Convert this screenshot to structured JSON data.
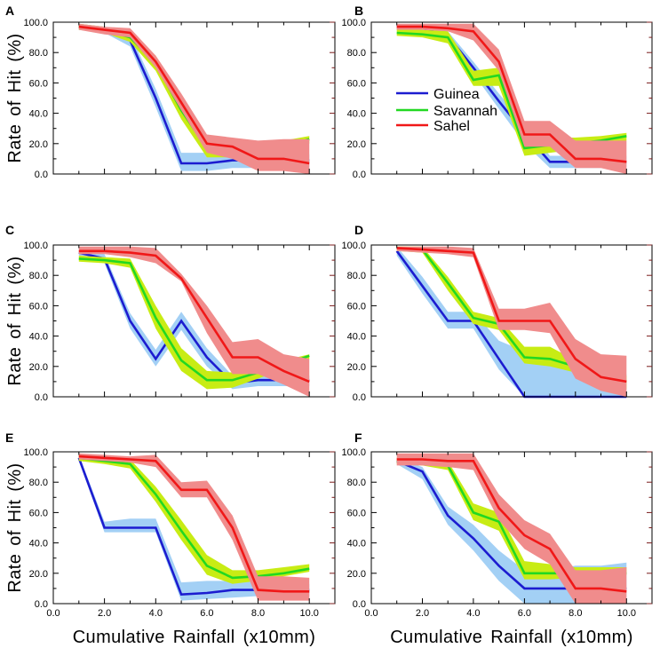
{
  "figure": {
    "background": "#ffffff",
    "frame_color": "#000000",
    "right_tick_color": "#7a1c1c"
  },
  "chart_data": [
    {
      "panel": "A",
      "type": "line",
      "xlim": [
        0,
        11
      ],
      "ylim": [
        0,
        100
      ],
      "xticks": [
        0,
        2,
        4,
        6,
        8,
        10
      ],
      "xtick_labels": [],
      "yticks": [
        0,
        20,
        40,
        60,
        80,
        100
      ],
      "ytick_labels": [
        "0.0",
        "20.0",
        "40.0",
        "60.0",
        "80.0",
        "100.0"
      ],
      "xlabel": "",
      "ylabel": "Rate of Hit (%)",
      "x": [
        1,
        2,
        3,
        4,
        5,
        6,
        7,
        8,
        9,
        10
      ],
      "series": [
        {
          "name": "Guinea",
          "line_color": "#1c1cd0",
          "band_color": "#a3d0f5",
          "values": [
            97,
            95,
            88,
            50,
            7,
            7,
            9,
            9,
            9,
            9
          ],
          "lower": [
            95,
            93,
            84,
            44,
            2,
            2,
            4,
            4,
            4,
            4
          ],
          "upper": [
            99,
            97,
            92,
            56,
            14,
            14,
            14,
            13,
            13,
            13
          ]
        },
        {
          "name": "Savannah",
          "line_color": "#22d822",
          "band_color": "#c8ec14",
          "values": [
            97,
            95,
            90,
            73,
            42,
            17,
            15,
            16,
            18,
            23
          ],
          "lower": [
            95,
            93,
            87,
            68,
            36,
            11,
            11,
            12,
            15,
            20
          ],
          "upper": [
            99,
            97,
            93,
            78,
            48,
            22,
            19,
            20,
            22,
            25
          ]
        },
        {
          "name": "Sahel",
          "line_color": "#f01818",
          "band_color": "#f08c8c",
          "values": [
            97,
            95,
            93,
            74,
            47,
            20,
            18,
            10,
            10,
            7
          ],
          "lower": [
            95,
            92,
            90,
            70,
            42,
            14,
            10,
            2,
            2,
            0
          ],
          "upper": [
            99,
            97,
            96,
            78,
            53,
            26,
            24,
            22,
            23,
            23
          ]
        }
      ]
    },
    {
      "panel": "B",
      "type": "line",
      "xlim": [
        0,
        11
      ],
      "ylim": [
        0,
        100
      ],
      "xticks": [
        0,
        2,
        4,
        6,
        8,
        10
      ],
      "xtick_labels": [],
      "yticks": [
        0,
        20,
        40,
        60,
        80,
        100
      ],
      "ytick_labels": [
        "0.0",
        "20.0",
        "40.0",
        "60.0",
        "80.0",
        "100.0"
      ],
      "xlabel": "",
      "ylabel": "",
      "legend": [
        "Guinea",
        "Savannah",
        "Sahel"
      ],
      "x": [
        1,
        2,
        3,
        4,
        5,
        6,
        7,
        8,
        9,
        10
      ],
      "series": [
        {
          "name": "Guinea",
          "line_color": "#1c1cd0",
          "band_color": "#a3d0f5",
          "values": [
            97,
            96,
            91,
            70,
            48,
            27,
            8,
            8,
            8,
            8
          ],
          "lower": [
            95,
            94,
            88,
            66,
            43,
            20,
            4,
            4,
            4,
            4
          ],
          "upper": [
            99,
            98,
            94,
            74,
            53,
            33,
            12,
            12,
            12,
            12
          ]
        },
        {
          "name": "Savannah",
          "line_color": "#22d822",
          "band_color": "#c8ec14",
          "values": [
            93,
            92,
            90,
            62,
            65,
            17,
            19,
            20,
            22,
            25
          ],
          "lower": [
            91,
            90,
            86,
            58,
            58,
            12,
            14,
            16,
            19,
            22
          ],
          "upper": [
            96,
            95,
            94,
            68,
            70,
            24,
            24,
            24,
            25,
            27
          ]
        },
        {
          "name": "Sahel",
          "line_color": "#f01818",
          "band_color": "#f08c8c",
          "values": [
            97,
            97,
            96,
            94,
            74,
            26,
            26,
            10,
            10,
            8
          ],
          "lower": [
            95,
            95,
            94,
            88,
            68,
            18,
            18,
            4,
            4,
            0
          ],
          "upper": [
            99,
            99,
            99,
            99,
            82,
            35,
            35,
            22,
            22,
            22
          ]
        }
      ]
    },
    {
      "panel": "C",
      "type": "line",
      "xlim": [
        0,
        11
      ],
      "ylim": [
        0,
        100
      ],
      "xticks": [
        0,
        2,
        4,
        6,
        8,
        10
      ],
      "xtick_labels": [],
      "yticks": [
        0,
        20,
        40,
        60,
        80,
        100
      ],
      "ytick_labels": [
        "0.0",
        "20.0",
        "40.0",
        "60.0",
        "80.0",
        "100.0"
      ],
      "xlabel": "",
      "ylabel": "Rate of Hit (%)",
      "x": [
        1,
        2,
        3,
        4,
        5,
        6,
        7,
        8,
        9,
        10
      ],
      "series": [
        {
          "name": "Guinea",
          "line_color": "#1c1cd0",
          "band_color": "#a3d0f5",
          "values": [
            95,
            91,
            50,
            25,
            50,
            26,
            9,
            11,
            11,
            11
          ],
          "lower": [
            93,
            88,
            45,
            20,
            44,
            20,
            5,
            7,
            7,
            7
          ],
          "upper": [
            97,
            94,
            55,
            31,
            56,
            32,
            14,
            14,
            14,
            14
          ]
        },
        {
          "name": "Savannah",
          "line_color": "#22d822",
          "band_color": "#c8ec14",
          "values": [
            91,
            90,
            88,
            52,
            24,
            11,
            11,
            16,
            21,
            27
          ],
          "lower": [
            89,
            88,
            85,
            45,
            17,
            5,
            6,
            12,
            18,
            25
          ],
          "upper": [
            93,
            92,
            91,
            60,
            32,
            17,
            16,
            20,
            24,
            28
          ]
        },
        {
          "name": "Sahel",
          "line_color": "#f01818",
          "band_color": "#f08c8c",
          "values": [
            96,
            96,
            95,
            93,
            78,
            52,
            26,
            26,
            17,
            10
          ],
          "lower": [
            94,
            94,
            92,
            88,
            76,
            42,
            15,
            15,
            8,
            0
          ],
          "upper": [
            99,
            99,
            99,
            98,
            81,
            60,
            36,
            38,
            28,
            25
          ]
        }
      ]
    },
    {
      "panel": "D",
      "type": "line",
      "xlim": [
        0,
        11
      ],
      "ylim": [
        0,
        100
      ],
      "xticks": [
        0,
        2,
        4,
        6,
        8,
        10
      ],
      "xtick_labels": [],
      "yticks": [
        0,
        20,
        40,
        60,
        80,
        100
      ],
      "ytick_labels": [
        "0.0",
        "20.0",
        "40.0",
        "60.0",
        "80.0",
        "100.0"
      ],
      "xlabel": "",
      "ylabel": "",
      "x": [
        1,
        2,
        3,
        4,
        5,
        6,
        7,
        8,
        9,
        10
      ],
      "series": [
        {
          "name": "Guinea",
          "line_color": "#1c1cd0",
          "band_color": "#a3d0f5",
          "values": [
            96,
            73,
            50,
            50,
            25,
            0,
            0,
            0,
            0,
            0
          ],
          "lower": [
            93,
            68,
            45,
            45,
            18,
            0,
            0,
            0,
            0,
            0
          ],
          "upper": [
            99,
            79,
            56,
            56,
            37,
            30,
            30,
            27,
            20,
            15
          ]
        },
        {
          "name": "Savannah",
          "line_color": "#22d822",
          "band_color": "#c8ec14",
          "values": [
            98,
            97,
            75,
            52,
            48,
            26,
            25,
            20,
            14,
            10
          ],
          "lower": [
            96,
            95,
            70,
            48,
            44,
            22,
            20,
            16,
            10,
            5
          ],
          "upper": [
            99,
            99,
            79,
            56,
            52,
            33,
            33,
            24,
            18,
            14
          ]
        },
        {
          "name": "Sahel",
          "line_color": "#f01818",
          "band_color": "#f08c8c",
          "values": [
            98,
            97,
            96,
            95,
            50,
            50,
            50,
            25,
            13,
            10
          ],
          "lower": [
            96,
            95,
            94,
            92,
            44,
            44,
            42,
            12,
            4,
            0
          ],
          "upper": [
            99,
            99,
            99,
            98,
            58,
            58,
            62,
            38,
            28,
            27
          ]
        }
      ]
    },
    {
      "panel": "E",
      "type": "line",
      "xlim": [
        0,
        11
      ],
      "ylim": [
        0,
        100
      ],
      "xticks": [
        0,
        2,
        4,
        6,
        8,
        10
      ],
      "xtick_labels": [
        "0.0",
        "2.0",
        "4.0",
        "6.0",
        "8.0",
        "10.0"
      ],
      "yticks": [
        0,
        20,
        40,
        60,
        80,
        100
      ],
      "ytick_labels": [
        "0.0",
        "20.0",
        "40.0",
        "60.0",
        "80.0",
        "100.0"
      ],
      "xlabel": "Cumulative Rainfall (x10mm)",
      "ylabel": "Rate of Hit (%)",
      "x": [
        1,
        2,
        3,
        4,
        5,
        6,
        7,
        8,
        9,
        10
      ],
      "series": [
        {
          "name": "Guinea",
          "line_color": "#1c1cd0",
          "band_color": "#a3d0f5",
          "values": [
            96,
            50,
            50,
            50,
            6,
            7,
            9,
            9,
            9,
            9
          ],
          "lower": [
            94,
            47,
            47,
            47,
            2,
            3,
            4,
            5,
            5,
            5
          ],
          "upper": [
            98,
            54,
            56,
            56,
            14,
            15,
            15,
            14,
            13,
            13
          ]
        },
        {
          "name": "Savannah",
          "line_color": "#22d822",
          "band_color": "#c8ec14",
          "values": [
            96,
            94,
            92,
            72,
            48,
            25,
            17,
            18,
            20,
            23
          ],
          "lower": [
            94,
            92,
            89,
            67,
            42,
            19,
            13,
            15,
            18,
            21
          ],
          "upper": [
            98,
            96,
            95,
            77,
            55,
            32,
            22,
            22,
            24,
            26
          ]
        },
        {
          "name": "Sahel",
          "line_color": "#f01818",
          "band_color": "#f08c8c",
          "values": [
            97,
            96,
            95,
            94,
            75,
            75,
            50,
            9,
            8,
            8
          ],
          "lower": [
            95,
            94,
            93,
            90,
            70,
            70,
            42,
            2,
            2,
            2
          ],
          "upper": [
            99,
            98,
            97,
            98,
            80,
            81,
            58,
            18,
            18,
            17
          ]
        }
      ]
    },
    {
      "panel": "F",
      "type": "line",
      "xlim": [
        0,
        11
      ],
      "ylim": [
        0,
        100
      ],
      "xticks": [
        0,
        2,
        4,
        6,
        8,
        10
      ],
      "xtick_labels": [
        "0.0",
        "2.0",
        "4.0",
        "6.0",
        "8.0",
        "10.0"
      ],
      "yticks": [
        0,
        20,
        40,
        60,
        80,
        100
      ],
      "ytick_labels": [
        "0.0",
        "20.0",
        "40.0",
        "60.0",
        "80.0",
        "100.0"
      ],
      "xlabel": "Cumulative Rainfall (x10mm)",
      "ylabel": "",
      "x": [
        1,
        2,
        3,
        4,
        5,
        6,
        7,
        8,
        9,
        10
      ],
      "series": [
        {
          "name": "Guinea",
          "line_color": "#1c1cd0",
          "band_color": "#a3d0f5",
          "values": [
            94,
            87,
            58,
            43,
            25,
            10,
            10,
            10,
            10,
            10
          ],
          "lower": [
            92,
            82,
            52,
            35,
            15,
            0,
            0,
            0,
            0,
            0
          ],
          "upper": [
            96,
            90,
            64,
            52,
            35,
            22,
            22,
            25,
            25,
            27
          ]
        },
        {
          "name": "Savannah",
          "line_color": "#22d822",
          "band_color": "#c8ec14",
          "values": [
            94,
            93,
            91,
            60,
            54,
            20,
            20,
            20,
            20,
            20
          ],
          "lower": [
            92,
            91,
            88,
            55,
            48,
            16,
            16,
            17,
            18,
            19
          ],
          "upper": [
            96,
            95,
            94,
            66,
            60,
            28,
            26,
            24,
            24,
            24
          ]
        },
        {
          "name": "Sahel",
          "line_color": "#f01818",
          "band_color": "#f08c8c",
          "values": [
            95,
            95,
            94,
            94,
            63,
            45,
            36,
            10,
            10,
            8
          ],
          "lower": [
            91,
            91,
            90,
            88,
            55,
            36,
            26,
            0,
            0,
            0
          ],
          "upper": [
            99,
            99,
            99,
            99,
            72,
            55,
            46,
            22,
            22,
            24
          ]
        }
      ]
    }
  ]
}
